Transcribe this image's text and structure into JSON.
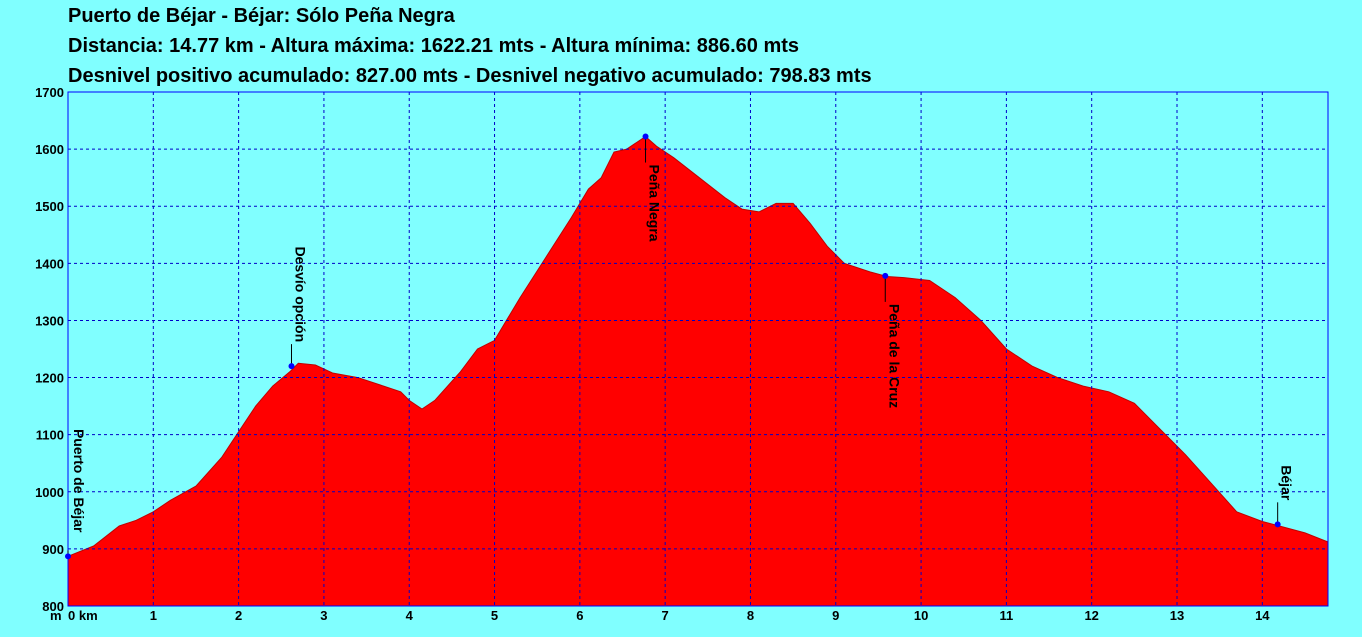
{
  "header": {
    "title": "Puerto de Béjar - Béjar:  Sólo Peña Negra",
    "stats_line_1": "Distancia: 14.77 km - Altura máxima: 1622.21 mts - Altura mínima: 886.60 mts",
    "stats_line_2": "Desnivel positivo acumulado: 827.00 mts - Desnivel negativo acumulado: 798.83 mts"
  },
  "chart_data": {
    "type": "area",
    "title": "Puerto de Béjar - Béjar:  Sólo Peña Negra",
    "xlabel": "km",
    "ylabel": "m",
    "xlim": [
      0,
      14.77
    ],
    "ylim": [
      800,
      1700
    ],
    "x_ticks": [
      0,
      1,
      2,
      3,
      4,
      5,
      6,
      7,
      8,
      9,
      10,
      11,
      12,
      13,
      14
    ],
    "x_tick_labels": [
      "0 km",
      "1",
      "2",
      "3",
      "4",
      "5",
      "6",
      "7",
      "8",
      "9",
      "10",
      "11",
      "12",
      "13",
      "14"
    ],
    "y_ticks": [
      800,
      900,
      1000,
      1100,
      1200,
      1300,
      1400,
      1500,
      1600,
      1700
    ],
    "y_tick_labels": [
      "800",
      "900",
      "1000",
      "1100",
      "1200",
      "1300",
      "1400",
      "1500",
      "1600",
      "1700"
    ],
    "y_unit_label": "m",
    "grid": true,
    "fill_color": "#ff0000",
    "background_color": "#80ffff",
    "grid_color": "#0000c8",
    "waypoint_color": "#0000ff",
    "series": [
      {
        "x": [
          0,
          0.3,
          0.6,
          0.8,
          1.0,
          1.2,
          1.5,
          1.8,
          2.0,
          2.2,
          2.4,
          2.6,
          2.7,
          2.9,
          3.1,
          3.4,
          3.7,
          3.9,
          4.0,
          4.15,
          4.3,
          4.6,
          4.8,
          5.0,
          5.3,
          5.6,
          5.9,
          6.1,
          6.25,
          6.4,
          6.55,
          6.77,
          6.9,
          7.1,
          7.4,
          7.7,
          7.9,
          8.1,
          8.3,
          8.5,
          8.7,
          8.9,
          9.1,
          9.4,
          9.6,
          9.8,
          10.1,
          10.4,
          10.7,
          11.0,
          11.3,
          11.6,
          11.9,
          12.2,
          12.5,
          12.8,
          13.1,
          13.4,
          13.7,
          14.0,
          14.2,
          14.5,
          14.77
        ],
        "y": [
          887,
          905,
          940,
          950,
          965,
          985,
          1010,
          1060,
          1105,
          1150,
          1185,
          1210,
          1225,
          1222,
          1208,
          1200,
          1185,
          1175,
          1160,
          1145,
          1160,
          1210,
          1250,
          1265,
          1340,
          1410,
          1480,
          1530,
          1550,
          1595,
          1600,
          1622,
          1605,
          1585,
          1550,
          1515,
          1495,
          1490,
          1505,
          1505,
          1470,
          1430,
          1400,
          1385,
          1377,
          1375,
          1370,
          1340,
          1300,
          1250,
          1220,
          1200,
          1185,
          1175,
          1155,
          1110,
          1065,
          1015,
          965,
          948,
          940,
          928,
          912
        ]
      }
    ],
    "waypoints": [
      {
        "label": "Puerto de Béjar",
        "x": 0,
        "y": 887
      },
      {
        "label": "Desvío opción",
        "x": 2.62,
        "y": 1220
      },
      {
        "label": "Peña Negra",
        "x": 6.77,
        "y": 1622
      },
      {
        "label": "Peña de la Cruz",
        "x": 9.58,
        "y": 1378
      },
      {
        "label": "Béjar",
        "x": 14.18,
        "y": 943
      }
    ]
  }
}
